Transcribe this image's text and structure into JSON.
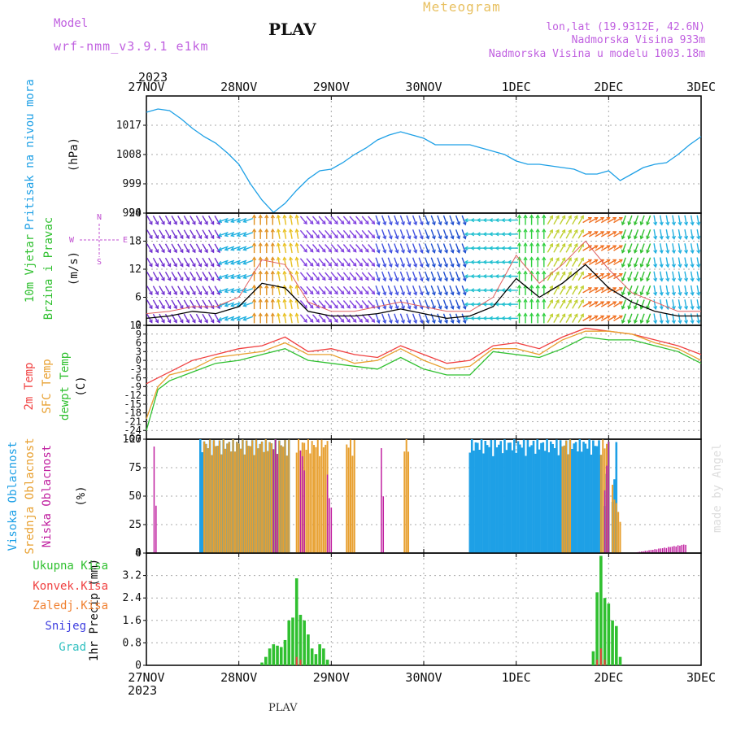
{
  "header": {
    "model_label": "Model",
    "model_name": "wrf-nmm_v3.9.1  e1km",
    "station": "PLAV",
    "product": "Meteogram",
    "coords": "lon,lat (19.9312E, 42.6N)",
    "elevation": "Nadmorska Visina 933m",
    "model_elevation": "Nadmorska Visina u modelu 1003.18m",
    "year": "2023",
    "footer_station": "PLAV",
    "watermark": "made by Angel"
  },
  "colors": {
    "pressure": "#1ea0e6",
    "temp2m": "#f04040",
    "sfc": "#e8a030",
    "dewpt": "#30c030",
    "high": "#1ea0e6",
    "mid": "#e8a030",
    "low": "#c020a0",
    "total": "#30c030",
    "conv": "#f04040",
    "frozen": "#f08030",
    "snow": "#4040e0",
    "grad": "#30c0c0",
    "windtext": "#c050d0",
    "label": "#c060e0",
    "title": "#e8c060"
  },
  "chart_data": [
    {
      "type": "line",
      "panel": "pressure",
      "ylabels": [
        "Pritisak na nivou mora",
        "(hPa)"
      ],
      "x_ticks": [
        "27NOV",
        "28NOV",
        "29NOV",
        "30NOV",
        "1DEC",
        "2DEC",
        "3DEC"
      ],
      "ylim": [
        990,
        1026
      ],
      "yticks": [
        990,
        999,
        1008,
        1017
      ],
      "x_hours": [
        0,
        3,
        6,
        9,
        12,
        15,
        18,
        21,
        24,
        27,
        30,
        33,
        36,
        39,
        42,
        45,
        48,
        51,
        54,
        57,
        60,
        63,
        66,
        69,
        72,
        75,
        78,
        81,
        84,
        87,
        90,
        93,
        96,
        99,
        102,
        105,
        108,
        111,
        114,
        117,
        120,
        123,
        126,
        129,
        132,
        135,
        138,
        141,
        144
      ],
      "values": [
        1021.0,
        1022.0,
        1021.5,
        1019.0,
        1016.0,
        1013.5,
        1011.5,
        1008.5,
        1005.0,
        999.0,
        994.0,
        990.2,
        993.0,
        997.0,
        1000.5,
        1003.0,
        1003.5,
        1005.5,
        1008.0,
        1010.0,
        1012.5,
        1014.0,
        1015.0,
        1014.0,
        1013.0,
        1011.0,
        1011.0,
        1011.0,
        1011.0,
        1010.0,
        1009.0,
        1008.0,
        1006.0,
        1005.0,
        1005.0,
        1004.5,
        1004.0,
        1003.5,
        1002.0,
        1002.0,
        1003.0,
        1000.0,
        1002.0,
        1004.0,
        1005.0,
        1005.5,
        1008.0,
        1011.0,
        1013.5
      ]
    },
    {
      "type": "line",
      "panel": "wind",
      "ylabels": [
        "10m Vjetar",
        "Brzina i Pravac",
        "(m/s)"
      ],
      "compass": {
        "n": "N",
        "w": "W",
        "e": "E",
        "s": "S"
      },
      "ylim": [
        0,
        24
      ],
      "yticks": [
        0,
        6,
        12,
        18,
        24
      ],
      "x_hours": [
        0,
        6,
        12,
        18,
        24,
        30,
        36,
        42,
        48,
        54,
        60,
        66,
        72,
        78,
        84,
        90,
        96,
        102,
        108,
        114,
        120,
        126,
        132,
        138,
        144
      ],
      "values": [
        1.5,
        2.0,
        3.0,
        2.5,
        4.0,
        9.0,
        8.0,
        3.0,
        2.0,
        2.0,
        2.5,
        3.5,
        2.5,
        1.5,
        2.0,
        4.0,
        10.0,
        6.0,
        9.0,
        13.0,
        8.0,
        5.0,
        3.0,
        2.0,
        2.0
      ],
      "gust": [
        2.5,
        3.0,
        4.0,
        4.0,
        6.0,
        14.0,
        13.0,
        5.0,
        3.0,
        3.0,
        4.0,
        5.0,
        4.0,
        3.0,
        3.0,
        6.0,
        15.0,
        9.0,
        13.0,
        18.0,
        12.0,
        7.0,
        5.0,
        3.0,
        3.0
      ],
      "arrow_rows": [
        1.5,
        4.5,
        7.5,
        10.5,
        13.5,
        16.5,
        19.5,
        22.5
      ]
    },
    {
      "type": "line",
      "panel": "temperature",
      "ylabels": [
        "2m Temp",
        "SFC Temp",
        "dewpt Temp",
        "(C)"
      ],
      "ylim": [
        -27,
        12
      ],
      "yticks": [
        -27,
        -24,
        -21,
        -18,
        -15,
        -12,
        -9,
        -6,
        -3,
        0,
        3,
        6,
        9,
        12
      ],
      "x_hours": [
        0,
        3,
        6,
        12,
        18,
        24,
        30,
        36,
        42,
        48,
        54,
        60,
        66,
        72,
        78,
        84,
        90,
        96,
        102,
        108,
        114,
        120,
        126,
        132,
        138,
        144
      ],
      "series": [
        {
          "key": "t2m",
          "values": [
            -8,
            -6,
            -4,
            0,
            2,
            4,
            5,
            8,
            3,
            4,
            2,
            1,
            5,
            2,
            -1,
            0,
            5,
            6,
            4,
            8,
            11,
            10,
            9,
            7,
            5,
            2
          ]
        },
        {
          "key": "tsfc",
          "values": [
            -20,
            -9,
            -5,
            -3,
            1,
            2,
            3,
            6,
            2,
            2,
            -1,
            0,
            4,
            0,
            -3,
            -2,
            4,
            4,
            2,
            7,
            10,
            10,
            9,
            6,
            4,
            0
          ]
        },
        {
          "key": "td",
          "values": [
            -24,
            -10,
            -7,
            -4,
            -1,
            0,
            2,
            4,
            0,
            -1,
            -2,
            -3,
            1,
            -3,
            -5,
            -5,
            3,
            2,
            1,
            4,
            8,
            7,
            7,
            5,
            3,
            -1
          ]
        }
      ]
    },
    {
      "type": "bar",
      "panel": "clouds",
      "ylabels": [
        "Visoka Oblacnost",
        "Srednja Oblacnost",
        "Niska Oblacnost",
        "(%)"
      ],
      "ylim": [
        0,
        100
      ],
      "yticks": [
        0,
        25,
        50,
        75,
        100
      ],
      "series": [
        {
          "key": "high",
          "bars": [
            [
              14,
              100,
              37,
              100
            ],
            [
              84,
              100,
              118,
              100
            ],
            [
              119,
              45,
              120,
              100
            ],
            [
              121,
              45,
              122,
              100
            ]
          ]
        },
        {
          "key": "mid",
          "bars": [
            [
              15,
              100,
              37,
              100
            ],
            [
              39,
              100,
              47,
              100
            ],
            [
              52,
              100,
              54,
              100
            ],
            [
              67,
              100,
              68,
              100
            ],
            [
              108,
              100,
              110,
              100
            ],
            [
              118,
              100,
              120,
              100
            ],
            [
              121,
              60,
              123,
              30
            ]
          ]
        },
        {
          "key": "low",
          "bars": [
            [
              2,
              95,
              3,
              0
            ],
            [
              33,
              100,
              34,
              100
            ],
            [
              40,
              100,
              41,
              75
            ],
            [
              47,
              70,
              48,
              40
            ],
            [
              61,
              100,
              62,
              0
            ],
            [
              119,
              60,
              120,
              100
            ],
            [
              126,
              0,
              140,
              8
            ]
          ]
        }
      ]
    },
    {
      "type": "bar",
      "panel": "precipitation",
      "ylabels": [
        "Ukupna Kisa",
        "Konvek.Kisa",
        "Zaledj.Kisa",
        "Snijeg",
        "Grad",
        "1hr Precip (mm)"
      ],
      "ylim": [
        0,
        4
      ],
      "yticks": [
        0,
        0.8,
        1.6,
        2.4,
        3.2,
        4
      ],
      "x_hours": [
        30,
        31,
        32,
        33,
        34,
        35,
        36,
        37,
        38,
        39,
        40,
        41,
        42,
        43,
        44,
        45,
        46,
        47,
        116,
        117,
        118,
        119,
        120,
        121,
        122,
        123
      ],
      "total": [
        0.1,
        0.3,
        0.6,
        0.75,
        0.7,
        0.65,
        0.9,
        1.6,
        1.7,
        3.1,
        1.8,
        1.6,
        1.1,
        0.6,
        0.4,
        0.75,
        0.6,
        0.2,
        0.5,
        2.6,
        3.9,
        2.4,
        2.2,
        1.6,
        1.4,
        0.3
      ],
      "conv": [
        0,
        0,
        0,
        0,
        0,
        0,
        0,
        0,
        0,
        0.3,
        0.2,
        0,
        0,
        0,
        0,
        0,
        0,
        0,
        0,
        0.2,
        0.6,
        0.2,
        0,
        0,
        0,
        0
      ]
    }
  ]
}
